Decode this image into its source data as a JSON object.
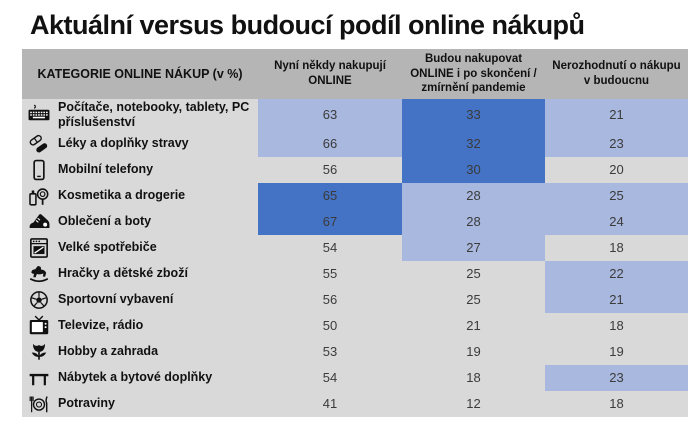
{
  "page": {
    "title": "Aktuální versus budoucí podíl online nákupů"
  },
  "colors": {
    "highlight_strong": "#4472C4",
    "highlight_mid": "#A9B8DF",
    "cell_gray": "#D9D9D9",
    "header_gray": "#B5B5B5"
  },
  "table": {
    "columns": [
      {
        "label": "KATEGORIE ONLINE NÁKUP (v %)"
      },
      {
        "label": "Nyní někdy nakupují ONLINE"
      },
      {
        "label": "Budou nakupovat ONLINE i po skončení / zmírnění pandemie"
      },
      {
        "label": "Nerozhodnutí o nákupu v budoucnu"
      }
    ],
    "rows": [
      {
        "icon": "keyboard-icon",
        "label": "Počítače, notebooky, tablety, PC příslušenství",
        "values": [
          63,
          33,
          21
        ],
        "highlights": [
          "mid",
          "strong",
          "mid"
        ]
      },
      {
        "icon": "pills-icon",
        "label": "Léky a doplňky stravy",
        "values": [
          66,
          32,
          23
        ],
        "highlights": [
          "mid",
          "strong",
          "mid"
        ]
      },
      {
        "icon": "smartphone-icon",
        "label": "Mobilní telefony",
        "values": [
          56,
          30,
          20
        ],
        "highlights": [
          "none",
          "strong",
          "none"
        ]
      },
      {
        "icon": "cosmetics-icon",
        "label": "Kosmetika a drogerie",
        "values": [
          65,
          28,
          25
        ],
        "highlights": [
          "strong",
          "mid",
          "mid"
        ]
      },
      {
        "icon": "sneaker-icon",
        "label": "Oblečení a boty",
        "values": [
          67,
          28,
          24
        ],
        "highlights": [
          "strong",
          "mid",
          "mid"
        ]
      },
      {
        "icon": "appliance-icon",
        "label": "Velké spotřebiče",
        "values": [
          54,
          27,
          18
        ],
        "highlights": [
          "none",
          "mid",
          "none"
        ]
      },
      {
        "icon": "rocking-horse-icon",
        "label": "Hračky a dětské zboží",
        "values": [
          55,
          25,
          22
        ],
        "highlights": [
          "none",
          "none",
          "mid"
        ]
      },
      {
        "icon": "soccer-ball-icon",
        "label": "Sportovní vybavení",
        "values": [
          56,
          25,
          21
        ],
        "highlights": [
          "none",
          "none",
          "mid"
        ]
      },
      {
        "icon": "tv-icon",
        "label": "Televize, rádio",
        "values": [
          50,
          21,
          18
        ],
        "highlights": [
          "none",
          "none",
          "none"
        ]
      },
      {
        "icon": "tulip-icon",
        "label": "Hobby a zahrada",
        "values": [
          53,
          19,
          19
        ],
        "highlights": [
          "none",
          "none",
          "none"
        ]
      },
      {
        "icon": "table-icon",
        "label": "Nábytek a bytové doplňky",
        "values": [
          54,
          18,
          23
        ],
        "highlights": [
          "none",
          "none",
          "mid"
        ]
      },
      {
        "icon": "cutlery-icon",
        "label": "Potraviny",
        "values": [
          41,
          12,
          18
        ],
        "highlights": [
          "none",
          "none",
          "none"
        ]
      }
    ]
  },
  "chart_data": {
    "type": "table",
    "title": "Aktuální versus budoucí podíl online nákupů",
    "unit": "%",
    "categories": [
      "Počítače, notebooky, tablety, PC příslušenství",
      "Léky a doplňky stravy",
      "Mobilní telefony",
      "Kosmetika a drogerie",
      "Oblečení a boty",
      "Velké spotřebiče",
      "Hračky a dětské zboží",
      "Sportovní vybavení",
      "Televize, rádio",
      "Hobby a zahrada",
      "Nábytek a bytové doplňky",
      "Potraviny"
    ],
    "series": [
      {
        "name": "Nyní někdy nakupují ONLINE",
        "values": [
          63,
          66,
          56,
          65,
          67,
          54,
          55,
          56,
          50,
          53,
          54,
          41
        ]
      },
      {
        "name": "Budou nakupovat ONLINE i po skončení / zmírnění pandemie",
        "values": [
          33,
          32,
          30,
          28,
          28,
          27,
          25,
          25,
          21,
          19,
          18,
          12
        ]
      },
      {
        "name": "Nerozhodnutí o nákupu v budoucnu",
        "values": [
          21,
          23,
          20,
          25,
          24,
          18,
          22,
          21,
          18,
          19,
          23,
          18
        ]
      }
    ],
    "layout_hints": {
      "highlight_strong_color": "#4472C4",
      "highlight_mid_color": "#A9B8DF",
      "default_cell_color": "#D9D9D9",
      "grid": false
    }
  }
}
